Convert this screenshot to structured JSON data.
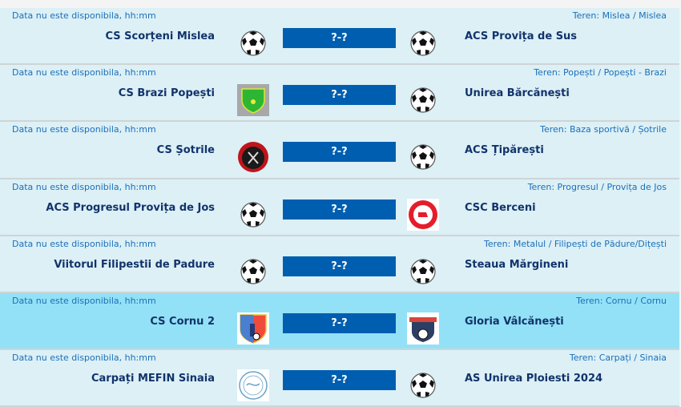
{
  "matches": [
    {
      "date": "Data nu este disponibila, hh:mm",
      "venue": "Teren: Mislea / Mislea",
      "home": "CS Scorțeni Mislea",
      "away": "ACS Provița de Sus",
      "score": "?-?",
      "home_logo": "ball",
      "away_logo": "ball",
      "highlight": false
    },
    {
      "date": "Data nu este disponibila, hh:mm",
      "venue": "Teren: Popești / Popești - Brazi",
      "home": "CS Brazi Popești",
      "away": "Unirea Bărcănești",
      "score": "?-?",
      "home_logo": "green-shield",
      "away_logo": "ball",
      "highlight": false
    },
    {
      "date": "Data nu este disponibila, hh:mm",
      "venue": "Teren: Baza sportivă / Șotrile",
      "home": "CS Șotrile",
      "away": "ACS Țipărești",
      "score": "?-?",
      "home_logo": "red-black-crest",
      "away_logo": "ball",
      "highlight": false
    },
    {
      "date": "Data nu este disponibila, hh:mm",
      "venue": "Teren: Progresul / Provița de Jos",
      "home": "ACS Progresul Provița de Jos",
      "away": "CSC Berceni",
      "score": "?-?",
      "home_logo": "ball",
      "away_logo": "red-round-crest",
      "highlight": false
    },
    {
      "date": "Data nu este disponibila, hh:mm",
      "venue": "Teren: Metalul / Filipești de Pădure/Dițești",
      "home": "Viitorul Filipestii de Padure",
      "away": "Steaua Mărgineni",
      "score": "?-?",
      "home_logo": "ball",
      "away_logo": "ball",
      "highlight": false
    },
    {
      "date": "Data nu este disponibila, hh:mm",
      "venue": "Teren: Cornu / Cornu",
      "home": "CS Cornu 2",
      "away": "Gloria Vâlcănești",
      "score": "?-?",
      "home_logo": "blue-red-shield",
      "away_logo": "navy-shield",
      "highlight": true
    },
    {
      "date": "Data nu este disponibila, hh:mm",
      "venue": "Teren: Carpați / Sinaia",
      "home": "Carpați MEFIN Sinaia",
      "away": "AS Unirea Ploiesti 2024",
      "score": "?-?",
      "home_logo": "blue-round-seal",
      "away_logo": "ball",
      "highlight": false
    }
  ],
  "colors": {
    "row_bg": "#dcf0f6",
    "row_highlight": "#93e1f6",
    "score_bg": "#005eb0",
    "team_text": "#12336b",
    "meta_text": "#1c6fb8"
  }
}
